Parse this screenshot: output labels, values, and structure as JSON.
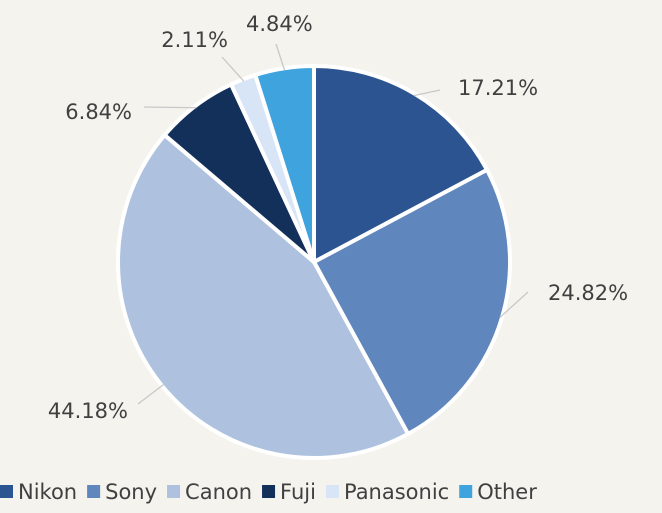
{
  "chart_data": {
    "type": "pie",
    "start_angle_deg": 0,
    "direction": "clockwise",
    "legend_position": "bottom",
    "slices": [
      {
        "label": "Nikon",
        "value": 17.21,
        "value_label": "17.21%",
        "color": "#2b5490"
      },
      {
        "label": "Sony",
        "value": 24.82,
        "value_label": "24.82%",
        "color": "#5f86bd"
      },
      {
        "label": "Canon",
        "value": 44.18,
        "value_label": "44.18%",
        "color": "#aec1de"
      },
      {
        "label": "Fuji",
        "value": 6.84,
        "value_label": "6.84%",
        "color": "#13305b"
      },
      {
        "label": "Panasonic",
        "value": 2.11,
        "value_label": "2.11%",
        "color": "#d7e5f6"
      },
      {
        "label": "Other",
        "value": 4.84,
        "value_label": "4.84%",
        "color": "#3fa3de"
      }
    ]
  }
}
